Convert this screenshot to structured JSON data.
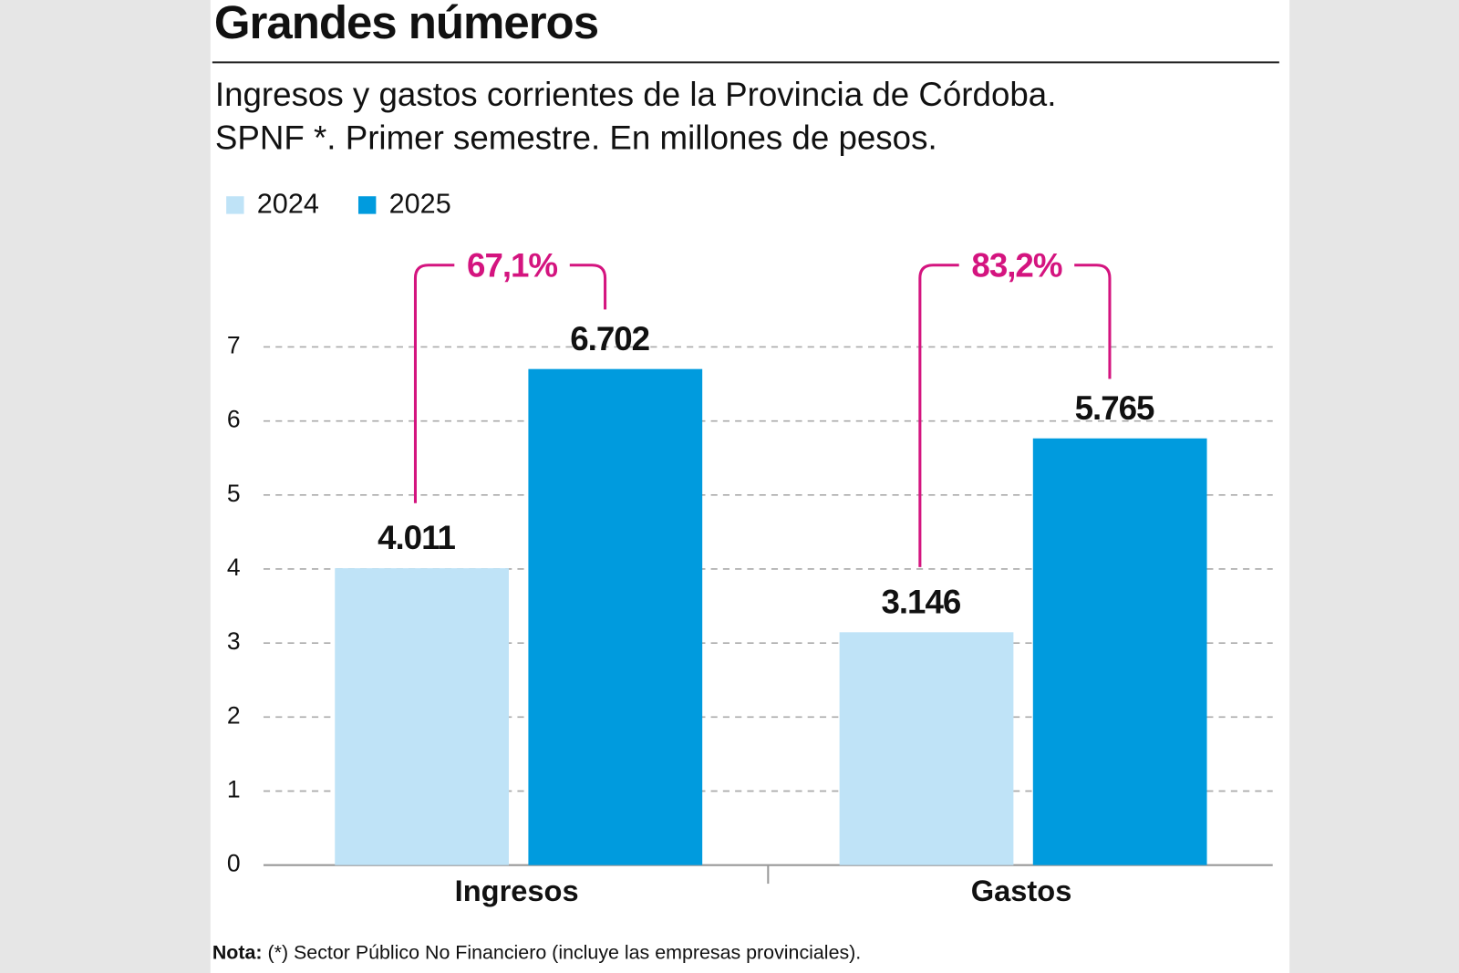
{
  "chart_data": {
    "type": "bar",
    "title": "Grandes números",
    "subtitle": [
      "Ingresos y gastos corrientes de la Provincia de Córdoba.",
      "SPNF *. Primer semestre. En millones de pesos."
    ],
    "categories": [
      "Ingresos",
      "Gastos"
    ],
    "series": [
      {
        "name": "2024",
        "color": "#bfe3f7",
        "values": [
          4.011,
          3.146
        ]
      },
      {
        "name": "2025",
        "color": "#009bde",
        "values": [
          6.702,
          5.765
        ]
      }
    ],
    "annotations": [
      "67,1%",
      "83,2%"
    ],
    "annotation_color": "#d4147f",
    "ylim": [
      0,
      7
    ],
    "yticks": [
      0,
      1,
      2,
      3,
      4,
      5,
      6,
      7
    ],
    "grid": true,
    "legend": "top-left",
    "note": {
      "label": "Nota:",
      "text": "(*) Sector Público No Financiero (incluye las empresas provinciales)."
    }
  }
}
